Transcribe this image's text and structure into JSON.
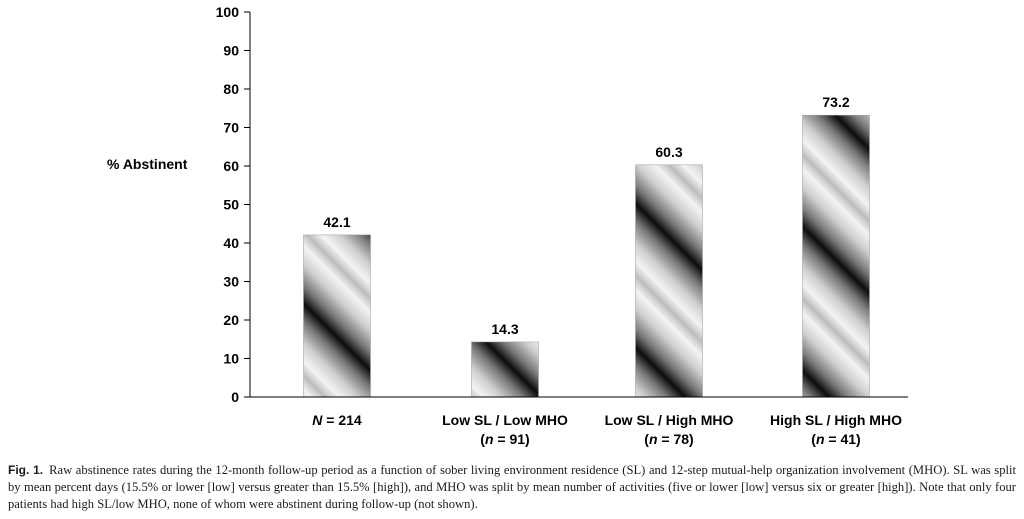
{
  "chart_data": {
    "type": "bar",
    "ylabel": "% Abstinent",
    "ylim": [
      0,
      100
    ],
    "yticks": [
      0,
      10,
      20,
      30,
      40,
      50,
      60,
      70,
      80,
      90,
      100
    ],
    "grid": false,
    "categories": [
      {
        "line1": "N = 214",
        "line1_italic": "N",
        "line1_rest": " = 214",
        "line2": "",
        "line2_italic": "",
        "line2_rest": "",
        "line2_open": ""
      },
      {
        "line1": "Low SL / Low MHO",
        "line2": "(n = 91)",
        "line2_open": "(",
        "line2_italic": "n",
        "line2_rest": " = 91)"
      },
      {
        "line1": "Low SL / High MHO",
        "line2": "(n = 78)",
        "line2_open": "(",
        "line2_italic": "n",
        "line2_rest": " = 78)"
      },
      {
        "line1": "High SL / High MHO",
        "line2": "(n = 41)",
        "line2_open": "(",
        "line2_italic": "n",
        "line2_rest": " = 41)"
      }
    ],
    "values": [
      42.1,
      14.3,
      60.3,
      73.2
    ],
    "value_labels": [
      "42.1",
      "14.3",
      "60.3",
      "73.2"
    ],
    "bar_fill": "diagonal black-gray-white gradient stripes",
    "colors": {
      "dark": "#111111",
      "mid": "#8a8a8a",
      "light": "#f2f2f2",
      "axis": "#000000"
    }
  },
  "caption": {
    "label": "Fig. 1.",
    "text": "Raw abstinence rates during the 12-month follow-up period as a function of sober living environment residence (SL) and 12-step mutual-help organization involvement (MHO). SL was split by mean percent days (15.5% or lower [low] versus greater than 15.5% [high]), and MHO was split by mean number of activities (five or lower [low] versus six or greater [high]). Note that only four patients had high SL/low MHO, none of whom were abstinent during follow-up (not shown)."
  }
}
